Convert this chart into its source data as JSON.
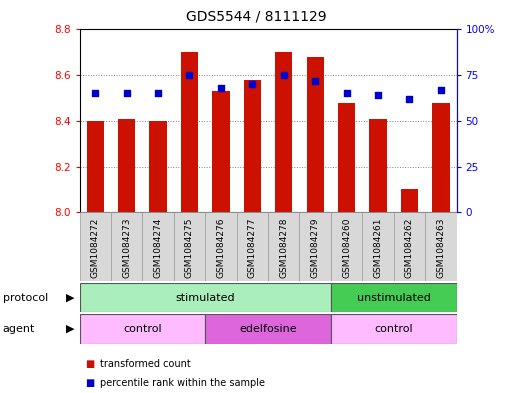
{
  "title": "GDS5544 / 8111129",
  "samples": [
    "GSM1084272",
    "GSM1084273",
    "GSM1084274",
    "GSM1084275",
    "GSM1084276",
    "GSM1084277",
    "GSM1084278",
    "GSM1084279",
    "GSM1084260",
    "GSM1084261",
    "GSM1084262",
    "GSM1084263"
  ],
  "bar_values": [
    8.4,
    8.41,
    8.4,
    8.7,
    8.53,
    8.58,
    8.7,
    8.68,
    8.48,
    8.41,
    8.1,
    8.48
  ],
  "percentile_values": [
    65,
    65,
    65,
    75,
    68,
    70,
    75,
    72,
    65,
    64,
    62,
    67
  ],
  "ymin": 8.0,
  "ymax": 8.8,
  "y_ticks": [
    8.0,
    8.2,
    8.4,
    8.6,
    8.8
  ],
  "y2_ticks": [
    0,
    25,
    50,
    75,
    100
  ],
  "bar_color": "#CC1100",
  "percentile_color": "#0000CC",
  "protocol_labels": [
    {
      "label": "stimulated",
      "start": 0,
      "end": 8,
      "color": "#AAEEBB"
    },
    {
      "label": "unstimulated",
      "start": 8,
      "end": 12,
      "color": "#44CC55"
    }
  ],
  "agent_labels": [
    {
      "label": "control",
      "start": 0,
      "end": 4,
      "color": "#FFBBFF"
    },
    {
      "label": "edelfosine",
      "start": 4,
      "end": 8,
      "color": "#DD66DD"
    },
    {
      "label": "control",
      "start": 8,
      "end": 12,
      "color": "#FFBBFF"
    }
  ],
  "legend_items": [
    "transformed count",
    "percentile rank within the sample"
  ],
  "protocol_arrow_label": "protocol",
  "agent_arrow_label": "agent",
  "title_fontsize": 10,
  "tick_fontsize": 7.5,
  "label_fontsize": 8,
  "sample_fontsize": 6.5,
  "row_label_fontsize": 8
}
